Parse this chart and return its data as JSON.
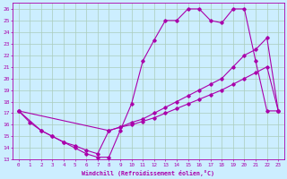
{
  "xlabel": "Windchill (Refroidissement éolien,°C)",
  "bg_color": "#cceeff",
  "grid_color": "#aaccbb",
  "line_color": "#aa00aa",
  "xlim": [
    -0.5,
    23.5
  ],
  "ylim": [
    13,
    26.5
  ],
  "xticks": [
    0,
    1,
    2,
    3,
    4,
    5,
    6,
    7,
    8,
    9,
    10,
    11,
    12,
    13,
    14,
    15,
    16,
    17,
    18,
    19,
    20,
    21,
    22,
    23
  ],
  "yticks": [
    13,
    14,
    15,
    16,
    17,
    18,
    19,
    20,
    21,
    22,
    23,
    24,
    25,
    26
  ],
  "line1_x": [
    0,
    1,
    2,
    3,
    4,
    5,
    6,
    7,
    8,
    9,
    10,
    11,
    12,
    13,
    14,
    15,
    16,
    17,
    18,
    19,
    20,
    21,
    22,
    23
  ],
  "line1_y": [
    17.2,
    16.2,
    15.5,
    15.0,
    14.5,
    14.0,
    13.5,
    13.2,
    13.2,
    15.5,
    17.8,
    21.5,
    23.3,
    25.0,
    25.0,
    26.0,
    26.0,
    25.0,
    24.8,
    26.0,
    26.0,
    21.5,
    17.2,
    17.2
  ],
  "line2_x": [
    0,
    2,
    3,
    4,
    5,
    6,
    7,
    8,
    9,
    10,
    11,
    12,
    13,
    14,
    15,
    16,
    17,
    18,
    19,
    20,
    21,
    22,
    23
  ],
  "line2_y": [
    17.2,
    15.5,
    15.0,
    14.5,
    14.2,
    13.8,
    13.5,
    15.5,
    15.8,
    16.2,
    16.5,
    17.0,
    17.5,
    18.0,
    18.5,
    19.0,
    19.5,
    20.0,
    21.0,
    22.0,
    22.5,
    23.5,
    17.2
  ],
  "line3_x": [
    0,
    8,
    9,
    10,
    11,
    12,
    13,
    14,
    15,
    16,
    17,
    18,
    19,
    20,
    21,
    22,
    23
  ],
  "line3_y": [
    17.2,
    15.5,
    15.8,
    16.0,
    16.3,
    16.6,
    17.0,
    17.4,
    17.8,
    18.2,
    18.6,
    19.0,
    19.5,
    20.0,
    20.5,
    21.0,
    17.2
  ]
}
